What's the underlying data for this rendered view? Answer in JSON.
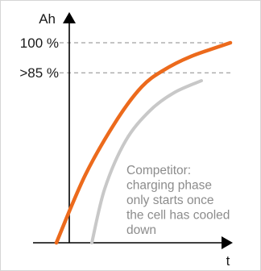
{
  "chart_data": {
    "type": "line",
    "title": "",
    "xlabel": "t",
    "ylabel": "Ah",
    "y_ticks": [
      {
        "value": 85,
        "label": ">85 %"
      },
      {
        "value": 100,
        "label": "100 %"
      }
    ],
    "grid": "dashed reference lines at tick values",
    "series": [
      {
        "color": "#ec6a1c",
        "x": [
          -0.08,
          0.1,
          0.3,
          0.45,
          0.58,
          0.75,
          1.0
        ],
        "y": [
          0,
          34,
          62,
          78,
          86,
          93,
          100
        ]
      },
      {
        "color": "#c8c8c8",
        "x": [
          0.14,
          0.22,
          0.35,
          0.5,
          0.65,
          0.82
        ],
        "y": [
          0,
          27,
          51,
          66,
          75,
          81
        ]
      }
    ],
    "annotation": {
      "lines": [
        "Competitor:",
        "charging phase",
        "only starts once",
        "the cell has cooled",
        "down"
      ]
    }
  }
}
